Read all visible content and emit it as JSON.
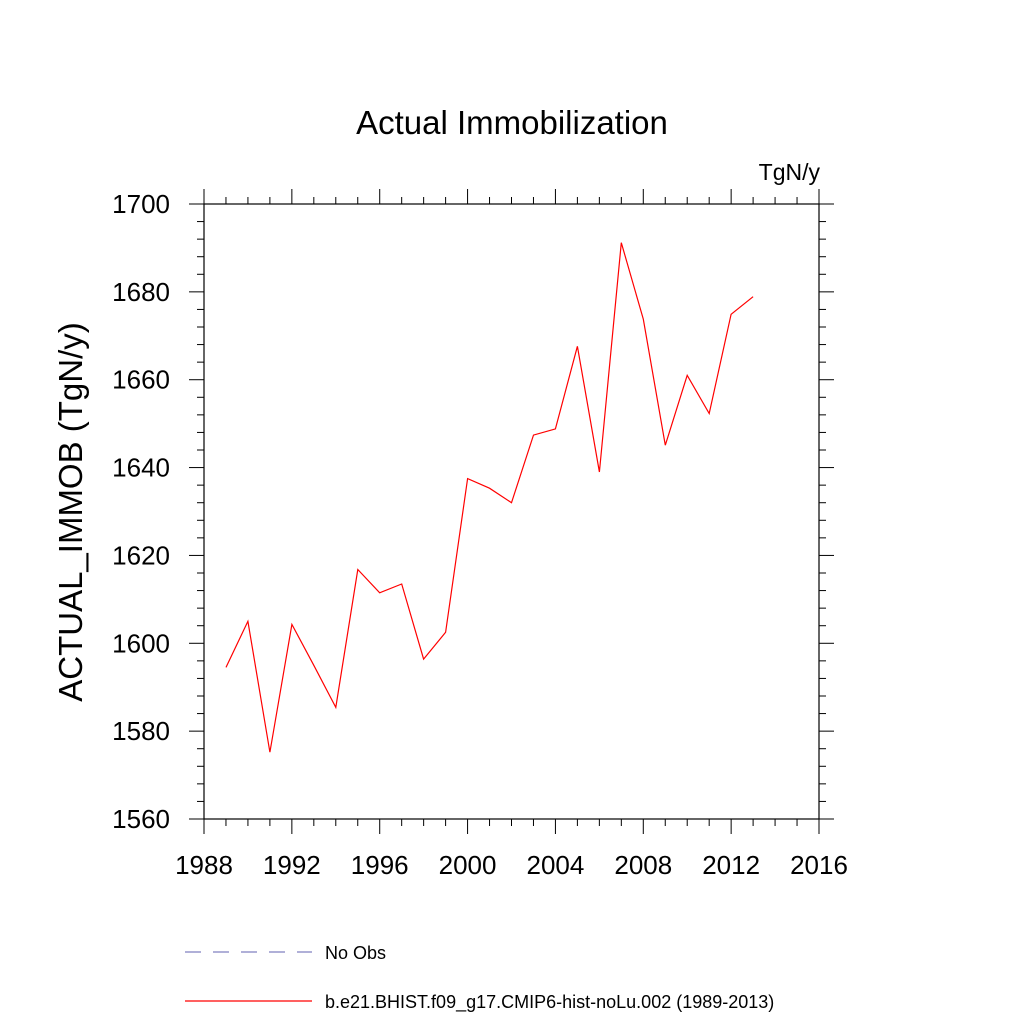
{
  "chart_data": {
    "type": "line",
    "title": "Actual Immobilization",
    "units": "TgN/y",
    "xlabel": "",
    "ylabel": "ACTUAL_IMMOB  (TgN/y)",
    "xlim": [
      1988,
      2016
    ],
    "ylim": [
      1560,
      1700
    ],
    "x_ticks": [
      1988,
      1992,
      1996,
      2000,
      2004,
      2008,
      2012,
      2016
    ],
    "x_tick_labels": [
      "1988",
      "1992",
      "1996",
      "2000",
      "2004",
      "2008",
      "2012",
      "2016"
    ],
    "y_ticks": [
      1560,
      1580,
      1600,
      1620,
      1640,
      1660,
      1680,
      1700
    ],
    "y_tick_labels": [
      "1560",
      "1580",
      "1600",
      "1620",
      "1640",
      "1660",
      "1680",
      "1700"
    ],
    "grid": false,
    "legend_position": "bottom",
    "series": [
      {
        "name": "b.e21.BHIST.f09_g17.CMIP6-hist-noLu.002 (1989-2013)",
        "color": "#ff0000",
        "dash": "solid",
        "x": [
          1989,
          1990,
          1991,
          1992,
          1993,
          1994,
          1995,
          1996,
          1997,
          1998,
          1999,
          2000,
          2001,
          2002,
          2003,
          2004,
          2005,
          2006,
          2007,
          2008,
          2009,
          2010,
          2011,
          2012,
          2013
        ],
        "values": [
          1594.5,
          1605.0,
          1575.2,
          1604.3,
          1595.0,
          1585.4,
          1616.8,
          1611.5,
          1613.5,
          1596.4,
          1602.5,
          1637.5,
          1635.3,
          1632.0,
          1647.4,
          1648.8,
          1667.6,
          1639.0,
          1691.2,
          1673.8,
          1645.1,
          1661.0,
          1652.3,
          1674.9,
          1678.9
        ]
      },
      {
        "name": "No Obs",
        "color": "#8080c0",
        "dash": "dashed",
        "x": [],
        "values": []
      }
    ]
  }
}
